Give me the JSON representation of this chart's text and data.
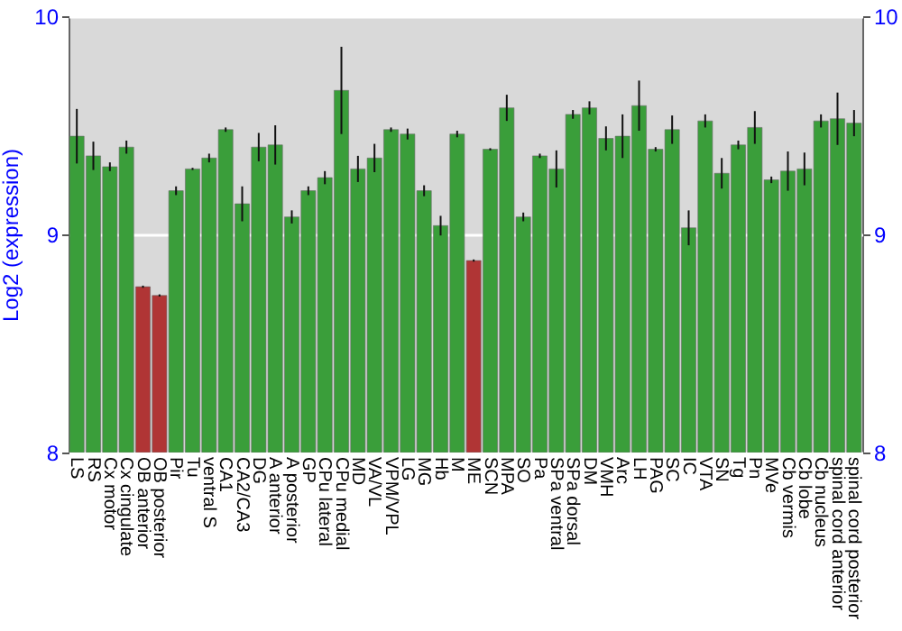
{
  "chart_data": {
    "type": "bar",
    "ylabel": "Log2 (expression)",
    "categories": [
      "LS",
      "RS",
      "Cx motor",
      "Cx cingulate",
      "OB anterior",
      "OB posterior",
      "Pir",
      "Tu",
      "ventral S",
      "CA1",
      "CA2/CA3",
      "DG",
      "A anterior",
      "A posterior",
      "GP",
      "CPu lateral",
      "CPu medial",
      "MD",
      "VA/VL",
      "VPM/VPL",
      "LG",
      "MG",
      "Hb",
      "M",
      "ME",
      "SCN",
      "MPA",
      "SO",
      "Pa",
      "SPa ventral",
      "SPa dorsal",
      "DM",
      "VMH",
      "Arc",
      "LH",
      "PAG",
      "SC",
      "IC",
      "VTA",
      "SN",
      "Tg",
      "Pn",
      "MVe",
      "Cb vermis",
      "Cb lobe",
      "Cb nucleus",
      "spinal cord anterior",
      "spinal cord posterior"
    ],
    "values": [
      9.45,
      9.36,
      9.31,
      9.4,
      8.76,
      8.72,
      9.2,
      9.3,
      9.35,
      9.48,
      9.14,
      9.4,
      9.41,
      9.08,
      9.2,
      9.26,
      9.66,
      9.3,
      9.35,
      9.48,
      9.46,
      9.2,
      9.04,
      9.46,
      8.88,
      9.39,
      9.58,
      9.08,
      9.36,
      9.3,
      9.55,
      9.58,
      9.44,
      9.45,
      9.59,
      9.39,
      9.48,
      9.03,
      9.52,
      9.28,
      9.41,
      9.49,
      9.25,
      9.29,
      9.3,
      9.52,
      9.53,
      9.51
    ],
    "errors": [
      0.125,
      0.065,
      0.02,
      0.03,
      0.005,
      0.005,
      0.02,
      0.005,
      0.02,
      0.01,
      0.08,
      0.065,
      0.09,
      0.03,
      0.02,
      0.03,
      0.2,
      0.06,
      0.065,
      0.01,
      0.025,
      0.025,
      0.045,
      0.015,
      0.005,
      0.005,
      0.06,
      0.02,
      0.01,
      0.085,
      0.02,
      0.03,
      0.055,
      0.1,
      0.115,
      0.01,
      0.065,
      0.08,
      0.03,
      0.07,
      0.02,
      0.075,
      0.015,
      0.09,
      0.075,
      0.03,
      0.12,
      0.06
    ],
    "colors": [
      "#3a9e3a",
      "#3a9e3a",
      "#3a9e3a",
      "#3a9e3a",
      "#b03535",
      "#b03535",
      "#3a9e3a",
      "#3a9e3a",
      "#3a9e3a",
      "#3a9e3a",
      "#3a9e3a",
      "#3a9e3a",
      "#3a9e3a",
      "#3a9e3a",
      "#3a9e3a",
      "#3a9e3a",
      "#3a9e3a",
      "#3a9e3a",
      "#3a9e3a",
      "#3a9e3a",
      "#3a9e3a",
      "#3a9e3a",
      "#3a9e3a",
      "#3a9e3a",
      "#b03535",
      "#3a9e3a",
      "#3a9e3a",
      "#3a9e3a",
      "#3a9e3a",
      "#3a9e3a",
      "#3a9e3a",
      "#3a9e3a",
      "#3a9e3a",
      "#3a9e3a",
      "#3a9e3a",
      "#3a9e3a",
      "#3a9e3a",
      "#3a9e3a",
      "#3a9e3a",
      "#3a9e3a",
      "#3a9e3a",
      "#3a9e3a",
      "#3a9e3a",
      "#3a9e3a",
      "#3a9e3a",
      "#3a9e3a",
      "#3a9e3a",
      "#3a9e3a"
    ],
    "ylim": [
      8,
      10
    ],
    "yticks": [
      8,
      9,
      10
    ],
    "y2lim": [
      8,
      10
    ],
    "y2ticks": [
      8,
      9,
      10
    ],
    "grid": "y"
  }
}
